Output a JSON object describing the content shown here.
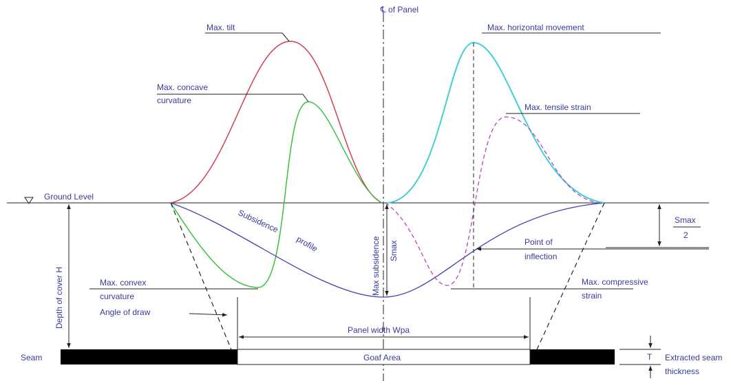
{
  "labels": {
    "centerline": "℄ of Panel",
    "max_tilt": "Max. tilt",
    "max_concave": [
      "Max. concave",
      "curvature"
    ],
    "max_horizontal": "Max. horizontal movement",
    "max_tensile": "Max. tensile strain",
    "ground_level": "Ground Level",
    "subsidence_profile": [
      "Subsidence",
      "profile"
    ],
    "max_subsidence": "Max subsidence",
    "smax": "Smax",
    "smax_half": [
      "Smax",
      "2"
    ],
    "point_of_inflection": [
      "Point of",
      "inflection"
    ],
    "depth_of_cover": "Depth of cover H",
    "max_convex": [
      "Max. convex",
      "curvature"
    ],
    "max_compressive": [
      "Max. compressive",
      "strain"
    ],
    "angle_of_draw": "Angle of draw",
    "panel_width": "Panel width Wpa",
    "seam": "Seam",
    "goaf_area": "Goaf Area",
    "thickness_symbol": "T",
    "extracted_seam": [
      "Extracted seam",
      "thickness"
    ]
  }
}
